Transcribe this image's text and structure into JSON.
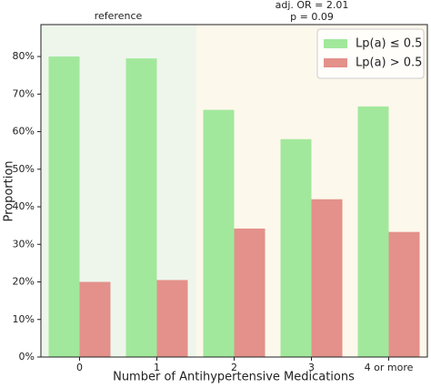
{
  "chart_data": {
    "type": "bar",
    "xlabel": "Number of Antihypertensive Medications",
    "ylabel": "Proportion",
    "categories": [
      "0",
      "1",
      "2",
      "3",
      "4 or more"
    ],
    "series": [
      {
        "name": "Lp(a) ≤ 0.5",
        "color": "#a2e89c",
        "values": [
          80,
          79.5,
          65.8,
          58,
          66.7
        ]
      },
      {
        "name": "Lp(a) > 0.5",
        "color": "#e3918a",
        "values": [
          20,
          20.5,
          34.2,
          42,
          33.3
        ]
      }
    ],
    "ylim": [
      0,
      88.5
    ],
    "yticks": [
      {
        "value": 0,
        "label": "0%"
      },
      {
        "value": 10,
        "label": "10%"
      },
      {
        "value": 20,
        "label": "20%"
      },
      {
        "value": 30,
        "label": "30%"
      },
      {
        "value": 40,
        "label": "40%"
      },
      {
        "value": 50,
        "label": "50%"
      },
      {
        "value": 60,
        "label": "60%"
      },
      {
        "value": 70,
        "label": "70%"
      },
      {
        "value": 80,
        "label": "80%"
      }
    ],
    "annotations": [
      "reference",
      "adj. OR = 2.01",
      "p = 0.09"
    ],
    "grid": false,
    "legend": "upper right"
  }
}
